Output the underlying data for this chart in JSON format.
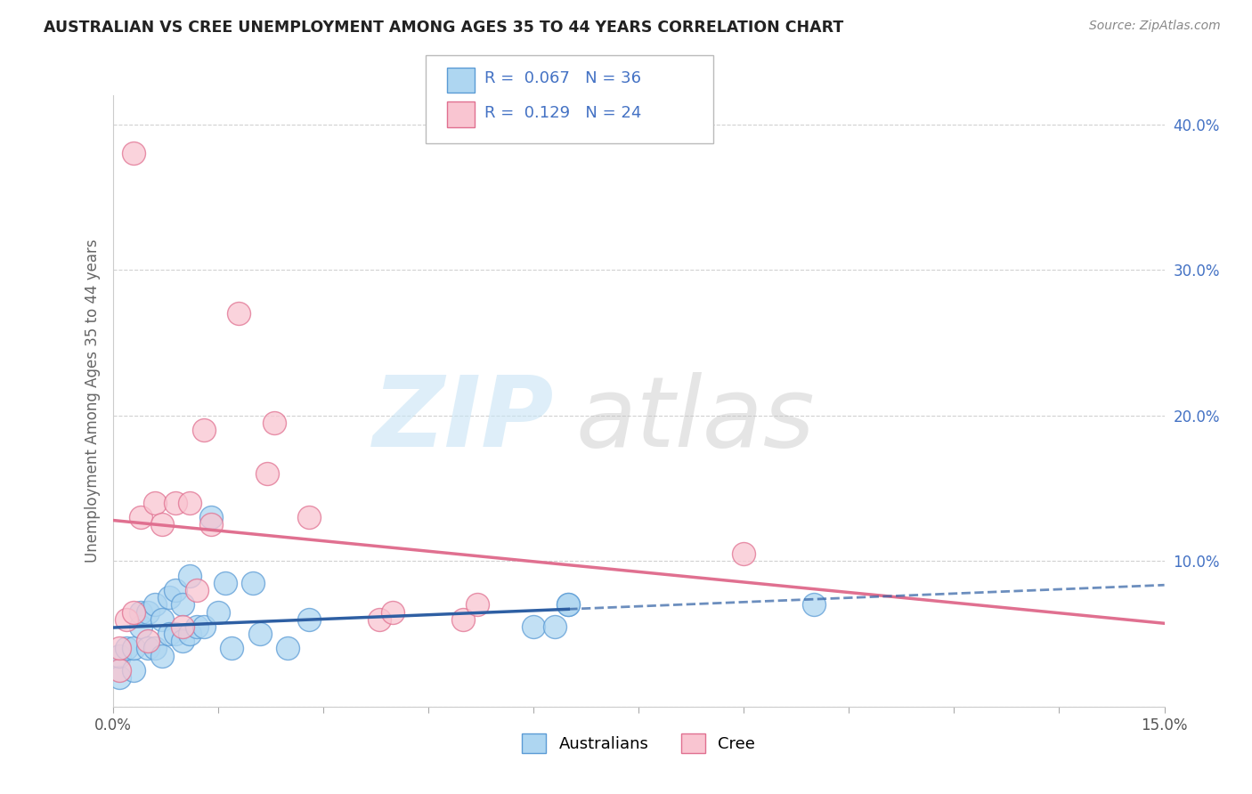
{
  "title": "AUSTRALIAN VS CREE UNEMPLOYMENT AMONG AGES 35 TO 44 YEARS CORRELATION CHART",
  "source": "Source: ZipAtlas.com",
  "ylabel": "Unemployment Among Ages 35 to 44 years",
  "xlim": [
    0.0,
    0.15
  ],
  "ylim": [
    0.0,
    0.42
  ],
  "xticks": [
    0.0,
    0.015,
    0.03,
    0.045,
    0.06,
    0.075,
    0.09,
    0.105,
    0.12,
    0.135,
    0.15
  ],
  "yticks": [
    0.0,
    0.1,
    0.2,
    0.3,
    0.4
  ],
  "yticklabels": [
    "",
    "10.0%",
    "20.0%",
    "30.0%",
    "40.0%"
  ],
  "xticklabels_show": [
    "0.0%",
    "15.0%"
  ],
  "watermark_zip": "ZIP",
  "watermark_atlas": "atlas",
  "legend_items": [
    {
      "color": "#aed6f1",
      "edge": "#5b9bd5",
      "R": "0.067",
      "N": "36"
    },
    {
      "color": "#f9c5d1",
      "edge": "#e07090",
      "R": "0.129",
      "N": "24"
    }
  ],
  "legend_label_color": "#4472c4",
  "australians_color": "#aed6f1",
  "australians_edge": "#5b9bd5",
  "cree_color": "#f9c5d1",
  "cree_edge": "#e07090",
  "blue_line_color": "#2e5fa3",
  "blue_line_solid_end": 0.065,
  "pink_line_color": "#e07090",
  "australians_x": [
    0.001,
    0.001,
    0.002,
    0.003,
    0.003,
    0.004,
    0.004,
    0.005,
    0.005,
    0.006,
    0.006,
    0.007,
    0.007,
    0.008,
    0.008,
    0.009,
    0.009,
    0.01,
    0.01,
    0.011,
    0.011,
    0.012,
    0.013,
    0.014,
    0.015,
    0.016,
    0.017,
    0.02,
    0.021,
    0.025,
    0.028,
    0.06,
    0.063,
    0.065,
    0.065,
    0.1
  ],
  "australians_y": [
    0.02,
    0.035,
    0.04,
    0.025,
    0.04,
    0.055,
    0.065,
    0.04,
    0.065,
    0.04,
    0.07,
    0.035,
    0.06,
    0.05,
    0.075,
    0.05,
    0.08,
    0.045,
    0.07,
    0.05,
    0.09,
    0.055,
    0.055,
    0.13,
    0.065,
    0.085,
    0.04,
    0.085,
    0.05,
    0.04,
    0.06,
    0.055,
    0.055,
    0.07,
    0.07,
    0.07
  ],
  "cree_x": [
    0.001,
    0.001,
    0.002,
    0.003,
    0.003,
    0.004,
    0.005,
    0.006,
    0.007,
    0.009,
    0.01,
    0.011,
    0.012,
    0.013,
    0.014,
    0.018,
    0.022,
    0.023,
    0.028,
    0.038,
    0.04,
    0.05,
    0.052,
    0.09
  ],
  "cree_y": [
    0.025,
    0.04,
    0.06,
    0.065,
    0.38,
    0.13,
    0.045,
    0.14,
    0.125,
    0.14,
    0.055,
    0.14,
    0.08,
    0.19,
    0.125,
    0.27,
    0.16,
    0.195,
    0.13,
    0.06,
    0.065,
    0.06,
    0.07,
    0.105
  ],
  "grid_color": "#cccccc",
  "background_color": "#ffffff",
  "bottom_legend_labels": [
    "Australians",
    "Cree"
  ]
}
